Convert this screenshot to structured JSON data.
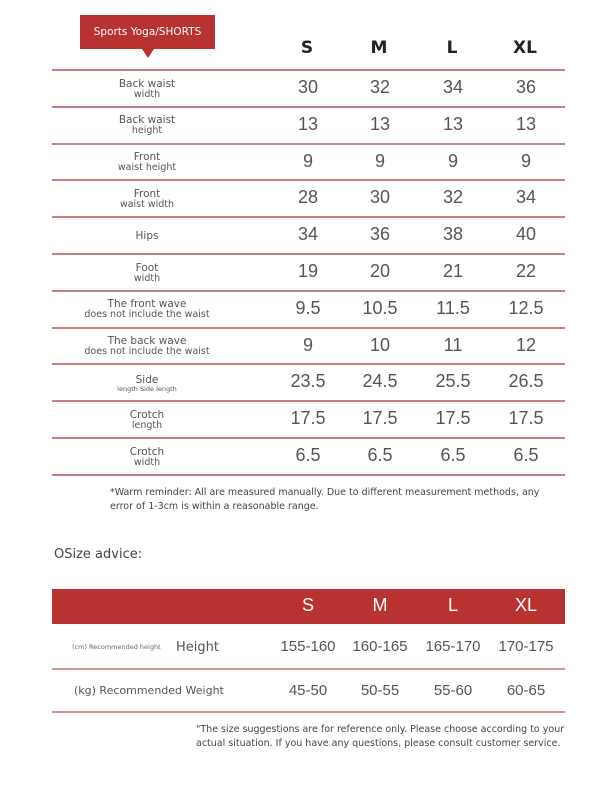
{
  "title": "Sports Yoga/SHORTS",
  "sizes": [
    "S",
    "M",
    "L",
    "XL"
  ],
  "rows": [
    {
      "line1": "Back waist",
      "line2": "width",
      "values": [
        "30",
        "32",
        "34",
        "36"
      ]
    },
    {
      "line1": "Back waist",
      "line2": "height",
      "values": [
        "13",
        "13",
        "13",
        "13"
      ]
    },
    {
      "line1": "Front",
      "line2": "waist height",
      "values": [
        "9",
        "9",
        "9",
        "9"
      ]
    },
    {
      "line1": "Front",
      "line2": "waist width",
      "values": [
        "28",
        "30",
        "32",
        "34"
      ]
    },
    {
      "line1": "Hips",
      "line2": "",
      "values": [
        "34",
        "36",
        "38",
        "40"
      ]
    },
    {
      "line1": "Foot",
      "line2": "width",
      "values": [
        "19",
        "20",
        "21",
        "22"
      ]
    },
    {
      "line1": "The front wave",
      "line2": "does not include the waist",
      "values": [
        "9.5",
        "10.5",
        "11.5",
        "12.5"
      ]
    },
    {
      "line1": "The back wave",
      "line2": "does not include the waist",
      "values": [
        "9",
        "10",
        "11",
        "12"
      ]
    },
    {
      "line1": "Side",
      "line2": "length Side length",
      "values": [
        "23.5",
        "24.5",
        "25.5",
        "26.5"
      ]
    },
    {
      "line1": "Crotch",
      "line2": "length",
      "values": [
        "17.5",
        "17.5",
        "17.5",
        "17.5"
      ]
    },
    {
      "line1": "Crotch",
      "line2": "width",
      "values": [
        "6.5",
        "6.5",
        "6.5",
        "6.5"
      ]
    }
  ],
  "reminder": "*Warm reminder: All are measured manually. Due to different measurement methods, any error of 1-3cm is within a reasonable range.",
  "advice": {
    "title": "OSize advice:",
    "sizes": [
      "S",
      "M",
      "L",
      "XL"
    ],
    "height_small_label": "(cm) Recommended height",
    "height_label": "Height",
    "height_values": [
      "155-160",
      "160-165",
      "165-170",
      "170-175"
    ],
    "weight_label": "(kg) Recommended Weight",
    "weight_values": [
      "45-50",
      "50-55",
      "55-60",
      "60-65"
    ],
    "note": "\"The size suggestions are for reference only. Please choose according to your actual situation. If you have any questions, please consult customer service."
  },
  "colors": {
    "accent": "#b83232",
    "rule": "#c97f7f"
  }
}
